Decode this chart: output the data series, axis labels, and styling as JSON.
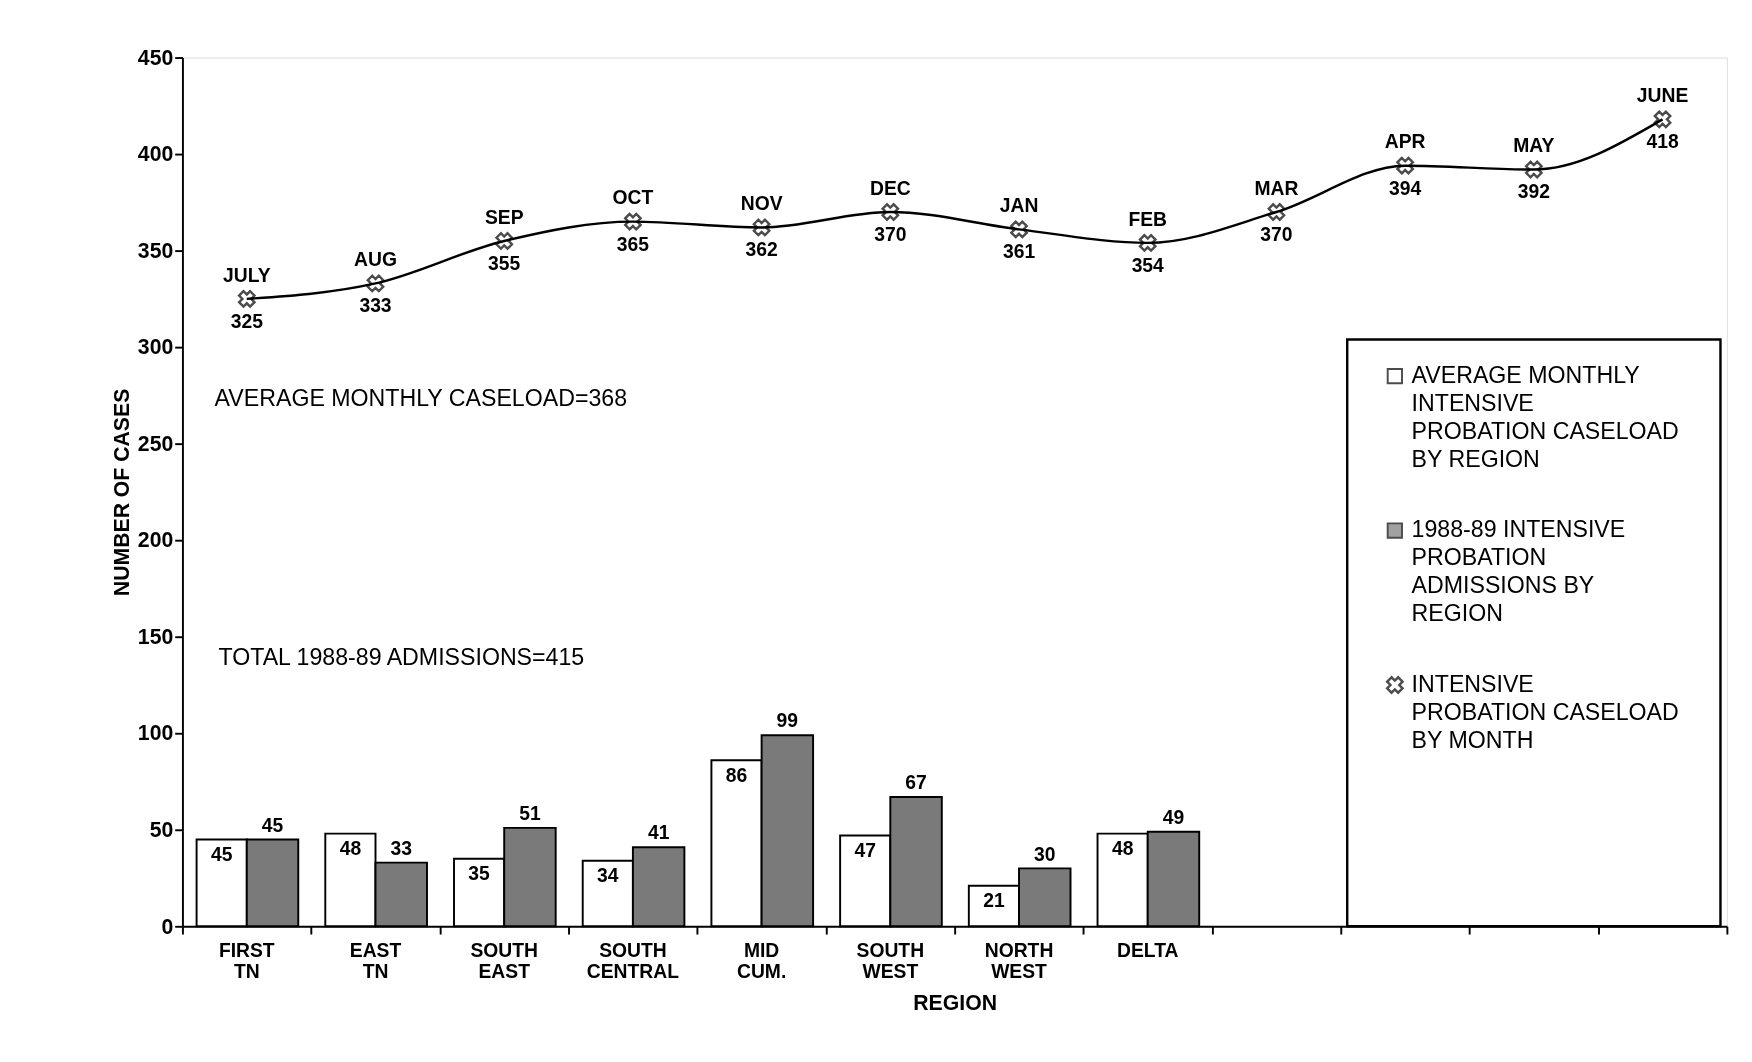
{
  "chart_data": {
    "type": "bar",
    "xlabel": "REGION",
    "ylabel": "NUMBER OF CASES",
    "categories": [
      "FIRST TN",
      "EAST TN",
      "SOUTH EAST",
      "SOUTH CENTRAL",
      "MID CUM.",
      "SOUTH WEST",
      "NORTH WEST",
      "DELTA",
      null,
      null,
      null,
      null
    ],
    "series": [
      {
        "name": "AVERAGE MONTHLY INTENSIVE PROBATION CASELOAD BY REGION",
        "color": "#ffffff",
        "values": [
          45,
          48,
          35,
          34,
          86,
          47,
          21,
          48,
          null,
          null,
          null,
          null
        ]
      },
      {
        "name": "1988-89 INTENSIVE PROBATION ADMISSIONS BY REGION",
        "color": "#7a7a7a",
        "values": [
          45,
          33,
          51,
          41,
          99,
          67,
          30,
          49,
          null,
          null,
          null,
          null
        ]
      },
      {
        "name": "INTENSIVE PROBATION CASELOAD BY MONTH",
        "type": "line",
        "color": "#000000",
        "marker": "cross",
        "values": [
          325,
          333,
          355,
          365,
          362,
          370,
          361,
          354,
          370,
          394,
          392,
          418
        ]
      }
    ],
    "ylim": [
      0,
      450
    ],
    "yticks": [
      0,
      50,
      100,
      150,
      200,
      250,
      300,
      350,
      400,
      450
    ],
    "data_labels": true,
    "grid": false,
    "legend": "bottom right",
    "annotations": [
      "AVERAGE MONTHLY CASELOAD=368",
      "TOTAL 1988-89 ADMISSIONS=415",
      {
        "text": "JULY",
        "y": 325
      },
      {
        "text": "AUG",
        "y": 333
      },
      {
        "text": "SEP",
        "y": 355
      },
      {
        "text": "OCT",
        "y": 365
      },
      {
        "text": "NOV",
        "y": 362
      },
      {
        "text": "DEC",
        "y": 370
      },
      {
        "text": "JAN",
        "y": 361
      },
      {
        "text": "FEB",
        "y": 354
      },
      {
        "text": "MAR",
        "y": 370
      },
      {
        "text": "APR",
        "y": 394
      },
      {
        "text": "MAY",
        "y": 392
      },
      {
        "text": "JUNE",
        "y": 418
      }
    ]
  }
}
